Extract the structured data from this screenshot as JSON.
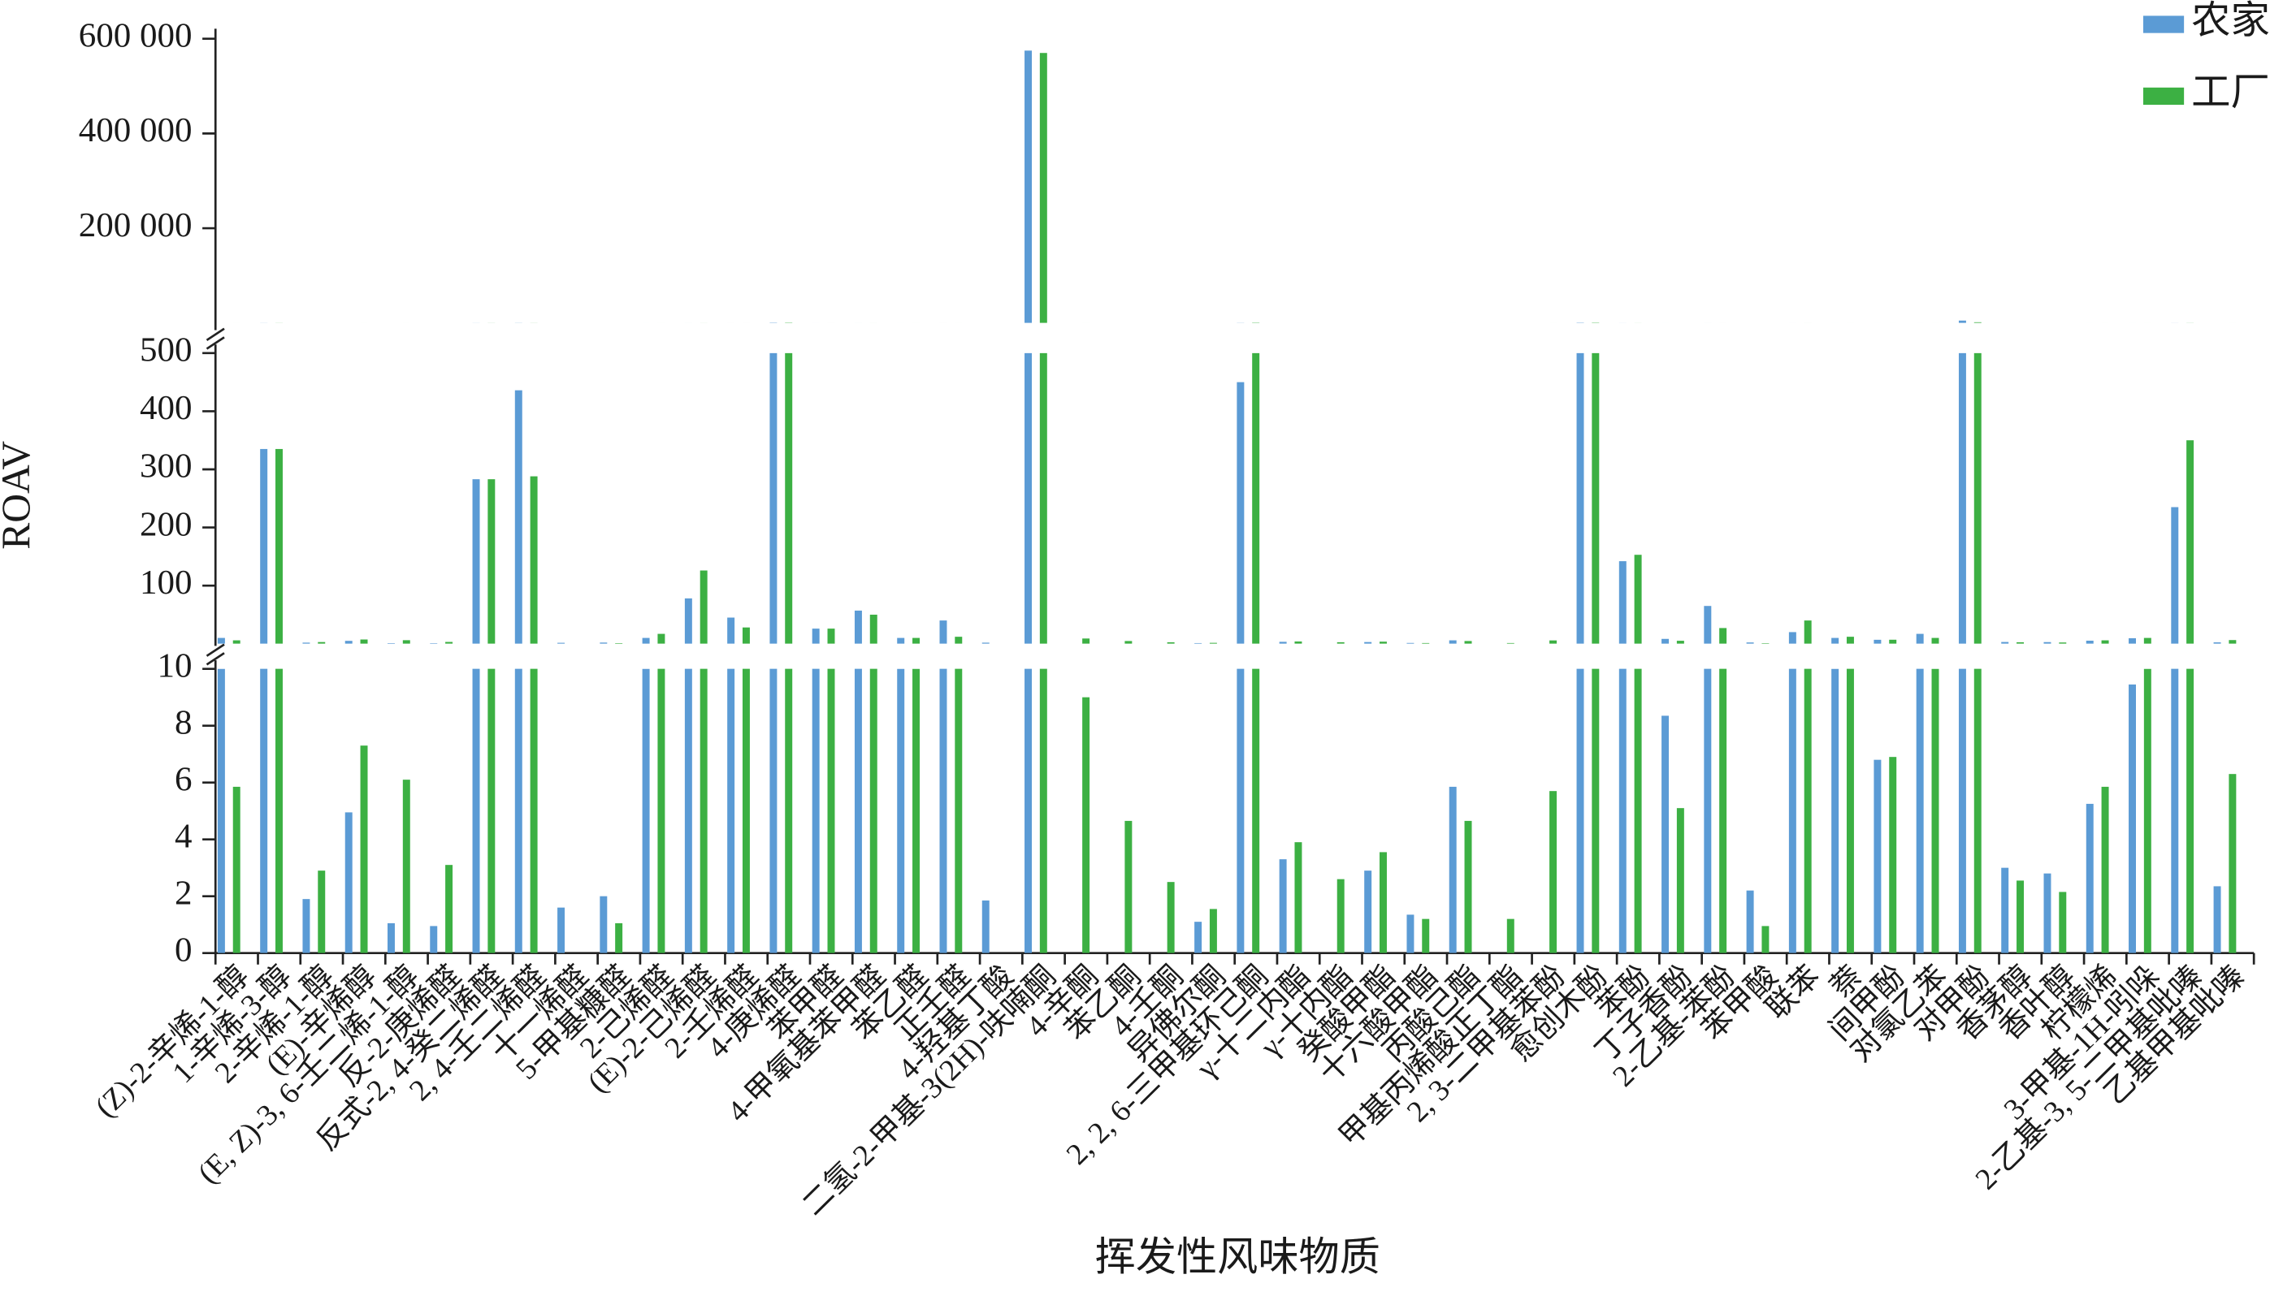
{
  "chart_data": {
    "type": "bar",
    "xlabel": "挥发性风味物质",
    "ylabel": "ROAV",
    "legend": "upper right",
    "categories": [
      "(Z)-2-辛烯-1-醇",
      "1-辛烯-3-醇",
      "2-辛烯-1-醇",
      "(E)-辛烯醇",
      "(E, Z)-3, 6-壬二烯-1-醇",
      "反-2-庚烯醛",
      "反式-2, 4-癸二烯醛",
      "2, 4-壬二烯醛",
      "十一烯醛",
      "5-甲基糠醛",
      "2-己烯醛",
      "(E)-2-己烯醛",
      "2-壬烯醛",
      "4-庚烯醛",
      "苯甲醛",
      "4-甲氧基苯甲醛",
      "苯乙醛",
      "正壬醛",
      "4-羟基丁酸",
      "二氢-2-甲基-3(2H)-呋喃酮",
      "4-辛酮",
      "苯乙酮",
      "4-壬酮",
      "异佛尔酮",
      "2, 2, 6-三甲基环己酮",
      "γ-十二内酯",
      "γ-十内酯",
      "癸酸甲酯",
      "十六酸甲酯",
      "丙酸己酯",
      "甲基丙烯酸正丁酯",
      "2, 3-二甲基苯酚",
      "愈创木酚",
      "苯酚",
      "丁子香酚",
      "2-乙基-苯酚",
      "苯甲酸",
      "联苯",
      "萘",
      "间甲酚",
      "对氯乙苯",
      "对甲酚",
      "香茅醇",
      "香叶醇",
      "柠檬烯",
      "3-甲基-1H-吲哚",
      "2-乙基-3, 5-二甲基吡嗪",
      "乙基甲基吡嗪"
    ],
    "series": [
      {
        "name": "农家",
        "color": "#5b9bd5",
        "values": [
          10,
          335,
          1.9,
          4.95,
          1.05,
          0.95,
          283,
          436,
          1.6,
          2.0,
          10,
          78,
          45,
          800,
          26,
          57,
          10,
          40,
          1.85,
          575000,
          null,
          null,
          null,
          1.1,
          450,
          3.3,
          null,
          2.9,
          1.35,
          5.85,
          null,
          null,
          800,
          142,
          8.35,
          65,
          2.2,
          20,
          10,
          6.8,
          17,
          5000,
          3.0,
          2.8,
          5.25,
          9.45,
          235,
          2.35
        ]
      },
      {
        "name": "工厂",
        "color": "#3cb043",
        "values": [
          5.85,
          335,
          2.9,
          7.3,
          6.1,
          3.1,
          283,
          288,
          null,
          1.05,
          17,
          126,
          28,
          800,
          26,
          50,
          10,
          12,
          null,
          570000,
          9.0,
          4.65,
          2.5,
          1.55,
          800,
          3.9,
          2.6,
          3.55,
          1.2,
          4.65,
          1.2,
          5.7,
          800,
          153,
          5.1,
          27,
          0.95,
          40,
          12,
          6.9,
          10,
          1500,
          2.55,
          2.15,
          5.85,
          10,
          350,
          6.3
        ]
      }
    ],
    "y_segments": [
      {
        "ylim": [
          0,
          10
        ],
        "yticks": [
          0,
          2,
          4,
          6,
          8,
          10
        ]
      },
      {
        "ylim": [
          0,
          500
        ],
        "yticks": [
          100,
          200,
          300,
          400,
          500
        ]
      },
      {
        "ylim": [
          0,
          600000
        ],
        "yticks": [
          {
            "value": 200000,
            "label": "200 000"
          },
          {
            "value": 400000,
            "label": "400 000"
          },
          {
            "value": 600000,
            "label": "600 000"
          }
        ]
      }
    ]
  }
}
